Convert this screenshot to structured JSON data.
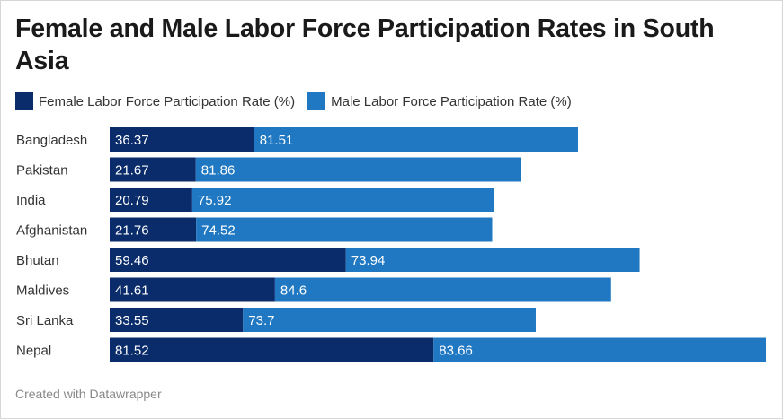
{
  "chart_data": {
    "type": "bar",
    "orientation": "horizontal",
    "stacked": true,
    "title": "Female and Male Labor Force Participation Rates in South Asia",
    "categories": [
      "Bangladesh",
      "Pakistan",
      "India",
      "Afghanistan",
      "Bhutan",
      "Maldives",
      "Sri Lanka",
      "Nepal"
    ],
    "series": [
      {
        "name": "Female Labor Force Participation Rate (%)",
        "color": "#0b2c6b",
        "values": [
          36.37,
          21.67,
          20.79,
          21.76,
          59.46,
          41.61,
          33.55,
          81.52
        ]
      },
      {
        "name": "Male Labor Force Participation Rate (%)",
        "color": "#1f78c1",
        "values": [
          81.51,
          81.86,
          75.92,
          74.52,
          73.94,
          84.6,
          73.7,
          83.66
        ]
      }
    ],
    "xlim": [
      0,
      165.18
    ],
    "grid": false,
    "legend": "top-left"
  },
  "footer": "Created with Datawrapper"
}
